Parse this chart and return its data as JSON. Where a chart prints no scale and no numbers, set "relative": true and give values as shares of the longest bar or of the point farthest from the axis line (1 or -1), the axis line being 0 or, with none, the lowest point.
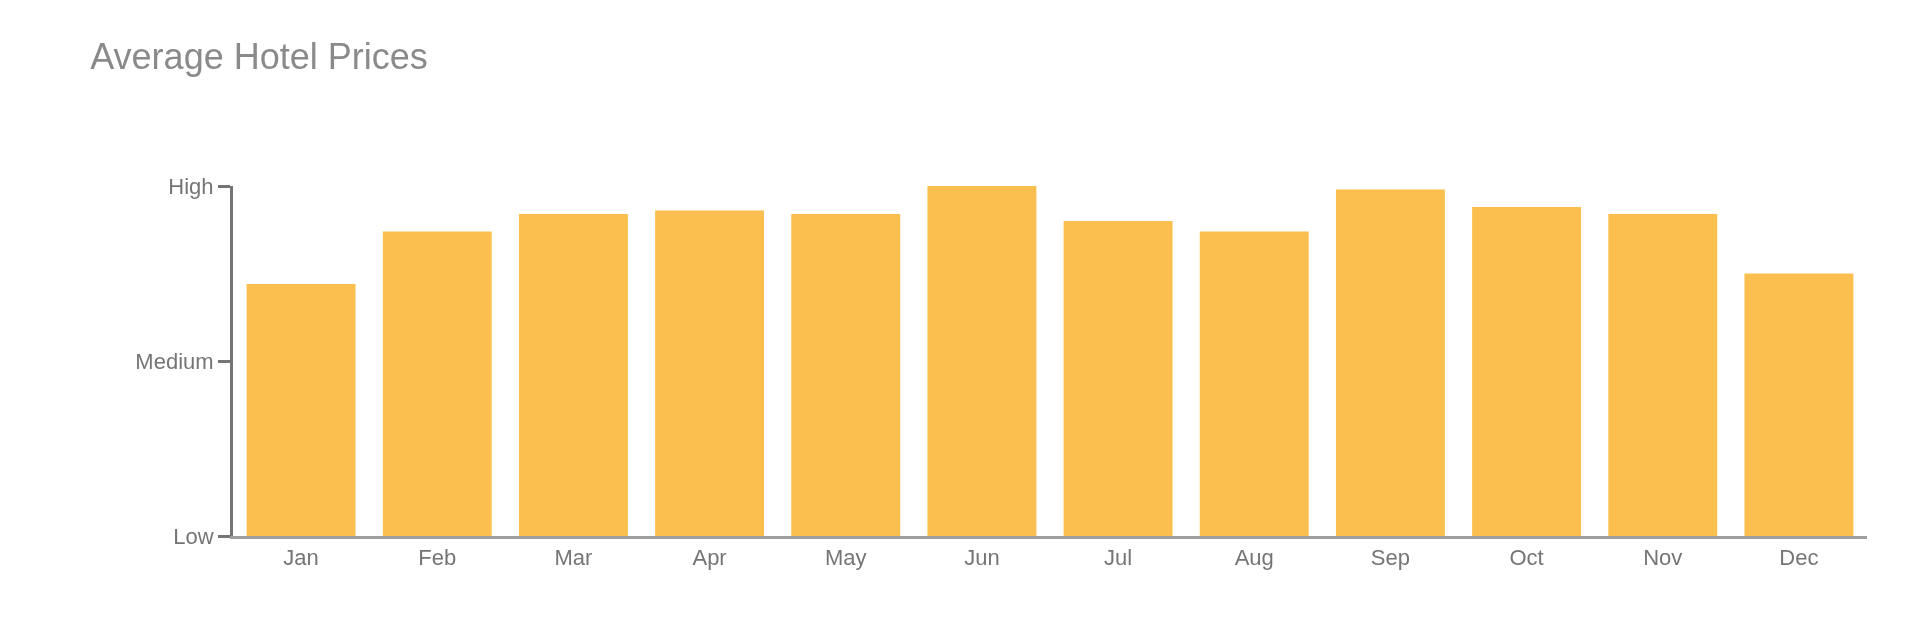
{
  "chart_data": {
    "type": "bar",
    "title": "Average Hotel Prices",
    "categories": [
      "Jan",
      "Feb",
      "Mar",
      "Apr",
      "May",
      "Jun",
      "Jul",
      "Aug",
      "Sep",
      "Oct",
      "Nov",
      "Dec"
    ],
    "values": [
      0.72,
      0.87,
      0.92,
      0.93,
      0.92,
      1.0,
      0.9,
      0.87,
      0.99,
      0.94,
      0.92,
      0.75
    ],
    "color": "#fbbf4f",
    "relative": true,
    "annotations": [
      "Low",
      "Medium",
      "High"
    ],
    "legend": false
  }
}
